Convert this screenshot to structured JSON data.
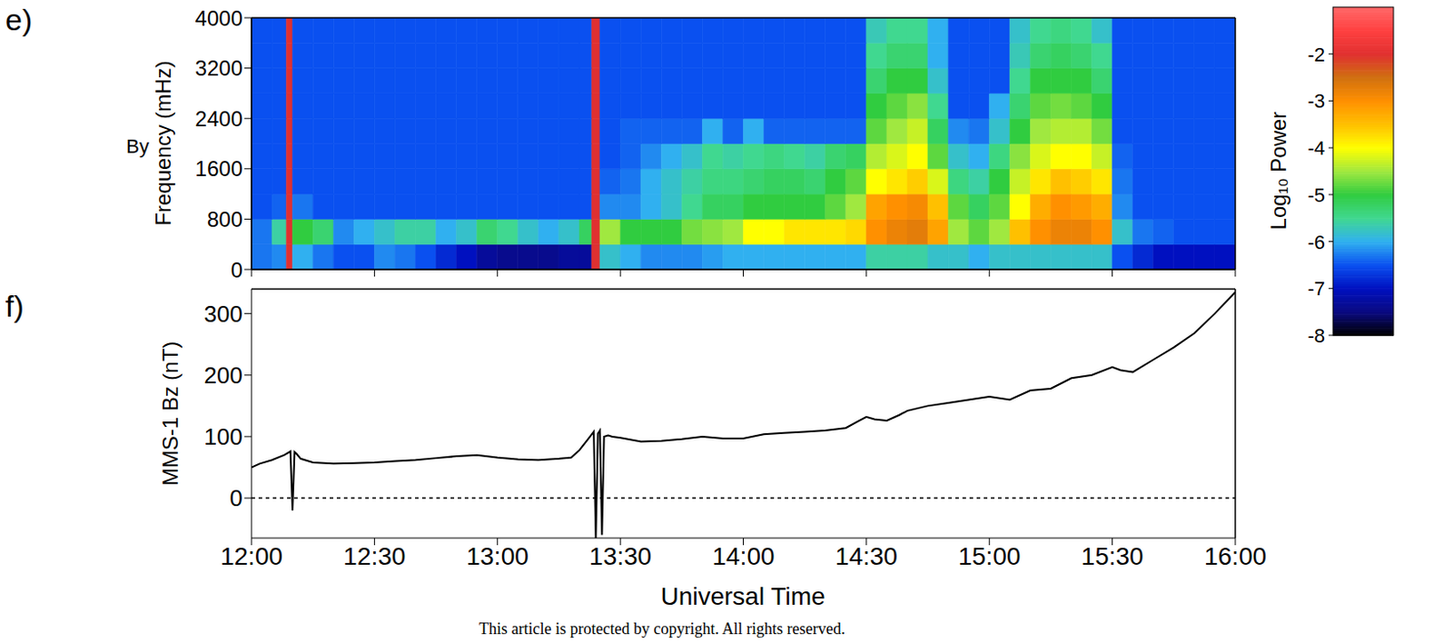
{
  "chart_data": [
    {
      "type": "heatmap",
      "panel": "e)",
      "ylabel": "Frequency  (mHz)",
      "annotation": "By",
      "x_edges": [
        0,
        5,
        8.5,
        10,
        15,
        20,
        25,
        30,
        35,
        40,
        45,
        50,
        55,
        60,
        65,
        70,
        75,
        80,
        83,
        85,
        90,
        95,
        100,
        105,
        110,
        115,
        120,
        125,
        130,
        135,
        140,
        145,
        150,
        155,
        160,
        165,
        170,
        175,
        180,
        185,
        190,
        195,
        200,
        205,
        210,
        215,
        220,
        225,
        230,
        235,
        240
      ],
      "y_edges": [
        0,
        400,
        800,
        1200,
        1600,
        2000,
        2400,
        2800,
        3200,
        3600,
        4000
      ],
      "cells": [
        [
          -6.3,
          -6.2,
          -2,
          -6,
          -6.3,
          -6.5,
          -6.5,
          -6.2,
          -6.3,
          -6.5,
          -6.8,
          -7,
          -7.3,
          -7.4,
          -7.4,
          -7.4,
          -7.3,
          -7.3,
          -2,
          -5.8,
          -6,
          -6.2,
          -6.2,
          -6.2,
          -6.1,
          -6,
          -6,
          -6,
          -6,
          -6,
          -6,
          -6,
          -5.6,
          -5.6,
          -5.6,
          -5.8,
          -5.8,
          -6,
          -5.8,
          -5.8,
          -5.8,
          -5.8,
          -5.8,
          -5.8,
          -6.5,
          -6.8,
          -7,
          -7,
          -7,
          -7
        ],
        [
          -6.3,
          -5.6,
          -2,
          -5,
          -5.3,
          -6.2,
          -6,
          -5.8,
          -5.6,
          -5.6,
          -6,
          -5.8,
          -5.3,
          -5.5,
          -5.8,
          -6,
          -5.8,
          -5.2,
          -2,
          -4.5,
          -5,
          -5,
          -5,
          -4.7,
          -4.6,
          -4.5,
          -4,
          -4,
          -3.8,
          -3.8,
          -3.8,
          -3.7,
          -3,
          -2.8,
          -2.7,
          -3.2,
          -4.5,
          -4.8,
          -4.5,
          -3.5,
          -3,
          -2.8,
          -2.8,
          -3,
          -5.8,
          -6.3,
          -6.4,
          -6.5,
          -6.5,
          -6.5
        ],
        [
          -6.5,
          -6.4,
          -2,
          -6.3,
          -6.5,
          -6.5,
          -6.5,
          -6.5,
          -6.5,
          -6.5,
          -6.5,
          -6.5,
          -6.5,
          -6.5,
          -6.5,
          -6.5,
          -6.5,
          -6.5,
          -2,
          -6.2,
          -6.2,
          -6,
          -5.8,
          -5.5,
          -5.2,
          -5.2,
          -5,
          -5,
          -5,
          -5,
          -4.8,
          -4.5,
          -3.2,
          -3,
          -2.9,
          -3.5,
          -4.8,
          -5.2,
          -4.8,
          -4,
          -3.3,
          -3,
          -3.1,
          -3.3,
          -6.2,
          -6.5,
          -6.5,
          -6.5,
          -6.5,
          -6.5
        ],
        [
          -6.5,
          -6.5,
          -2,
          -6.5,
          -6.5,
          -6.5,
          -6.5,
          -6.5,
          -6.5,
          -6.5,
          -6.5,
          -6.5,
          -6.5,
          -6.5,
          -6.5,
          -6.5,
          -6.5,
          -6.5,
          -2,
          -6.4,
          -6.3,
          -6,
          -5.8,
          -5.6,
          -5.4,
          -5.4,
          -5.3,
          -5.2,
          -5.2,
          -5.3,
          -5,
          -4.8,
          -4,
          -3.8,
          -3.6,
          -4.2,
          -5.4,
          -5.6,
          -5,
          -4.3,
          -3.8,
          -3.5,
          -3.6,
          -3.8,
          -6.3,
          -6.5,
          -6.5,
          -6.5,
          -6.5,
          -6.5
        ],
        [
          -6.5,
          -6.5,
          -2,
          -6.5,
          -6.5,
          -6.5,
          -6.5,
          -6.5,
          -6.5,
          -6.5,
          -6.5,
          -6.5,
          -6.5,
          -6.5,
          -6.5,
          -6.5,
          -6.5,
          -6.5,
          -2,
          -6.5,
          -6.4,
          -6.2,
          -6,
          -5.8,
          -5.5,
          -5.6,
          -5.5,
          -5.4,
          -5.5,
          -5.6,
          -5.3,
          -5.2,
          -4.4,
          -4.2,
          -4,
          -4.8,
          -5.8,
          -6,
          -5.4,
          -4.6,
          -4.2,
          -4,
          -4,
          -4.3,
          -6.4,
          -6.5,
          -6.5,
          -6.5,
          -6.5,
          -6.5
        ],
        [
          -6.5,
          -6.5,
          -2,
          -6.5,
          -6.5,
          -6.5,
          -6.5,
          -6.5,
          -6.5,
          -6.5,
          -6.5,
          -6.5,
          -6.5,
          -6.5,
          -6.5,
          -6.5,
          -6.5,
          -6.5,
          -2,
          -6.5,
          -6.4,
          -6.4,
          -6.4,
          -6.4,
          -6,
          -6.4,
          -6,
          -6.4,
          -6.4,
          -6.4,
          -6.4,
          -6.4,
          -4.8,
          -4.5,
          -4.3,
          -5.2,
          -6.2,
          -6.3,
          -5.8,
          -5,
          -4.5,
          -4.4,
          -4.4,
          -4.7,
          -6.5,
          -6.5,
          -6.5,
          -6.5,
          -6.5,
          -6.5
        ],
        [
          -6.5,
          -6.5,
          -2,
          -6.5,
          -6.5,
          -6.5,
          -6.5,
          -6.5,
          -6.5,
          -6.5,
          -6.5,
          -6.5,
          -6.5,
          -6.5,
          -6.5,
          -6.5,
          -6.5,
          -6.5,
          -2,
          -6.5,
          -6.5,
          -6.5,
          -6.5,
          -6.5,
          -6.5,
          -6.5,
          -6.5,
          -6.5,
          -6.5,
          -6.5,
          -6.5,
          -6.5,
          -5,
          -4.8,
          -4.6,
          -5.5,
          -6.5,
          -6.5,
          -6,
          -5.3,
          -4.8,
          -4.7,
          -4.8,
          -5,
          -6.5,
          -6.5,
          -6.5,
          -6.5,
          -6.5,
          -6.5
        ],
        [
          -6.5,
          -6.5,
          -2,
          -6.5,
          -6.5,
          -6.5,
          -6.5,
          -6.5,
          -6.5,
          -6.5,
          -6.5,
          -6.5,
          -6.5,
          -6.5,
          -6.5,
          -6.5,
          -6.5,
          -6.5,
          -2,
          -6.5,
          -6.5,
          -6.5,
          -6.5,
          -6.5,
          -6.5,
          -6.5,
          -6.5,
          -6.5,
          -6.5,
          -6.5,
          -6.5,
          -6.5,
          -5.3,
          -5,
          -5,
          -5.8,
          -6.5,
          -6.5,
          -6.5,
          -5.5,
          -5,
          -5,
          -5,
          -5.3,
          -6.5,
          -6.5,
          -6.5,
          -6.5,
          -6.5,
          -6.5
        ],
        [
          -6.5,
          -6.5,
          -2,
          -6.5,
          -6.5,
          -6.5,
          -6.5,
          -6.5,
          -6.5,
          -6.5,
          -6.5,
          -6.5,
          -6.5,
          -6.5,
          -6.5,
          -6.5,
          -6.5,
          -6.5,
          -2,
          -6.5,
          -6.5,
          -6.5,
          -6.5,
          -6.5,
          -6.5,
          -6.5,
          -6.5,
          -6.5,
          -6.5,
          -6.5,
          -6.5,
          -6.5,
          -5.5,
          -5.3,
          -5.3,
          -6,
          -6.5,
          -6.5,
          -6.5,
          -5.7,
          -5.3,
          -5.2,
          -5.3,
          -5.5,
          -6.5,
          -6.5,
          -6.5,
          -6.5,
          -6.5,
          -6.5
        ],
        [
          -6.5,
          -6.5,
          -2,
          -6.5,
          -6.5,
          -6.5,
          -6.5,
          -6.5,
          -6.5,
          -6.5,
          -6.5,
          -6.5,
          -6.5,
          -6.5,
          -6.5,
          -6.5,
          -6.5,
          -6.5,
          -2,
          -6.5,
          -6.5,
          -6.5,
          -6.5,
          -6.5,
          -6.5,
          -6.5,
          -6.5,
          -6.5,
          -6.5,
          -6.5,
          -6.5,
          -6.5,
          -5.7,
          -5.5,
          -5.5,
          -6,
          -6.5,
          -6.5,
          -6.5,
          -5.8,
          -5.5,
          -5.4,
          -5.5,
          -5.8,
          -6.5,
          -6.5,
          -6.5,
          -6.5,
          -6.5,
          -6.5
        ]
      ],
      "xlim": [
        0,
        240
      ],
      "xticks": [
        0,
        30,
        60,
        90,
        120,
        150,
        180,
        210,
        240
      ],
      "ylim": [
        0,
        4000
      ],
      "yticks": [
        0,
        800,
        1600,
        2400,
        3200,
        4000
      ],
      "tick_labels": "y",
      "colorbar": {
        "label": "Log₁₀ Power",
        "range": [
          -8,
          -1
        ],
        "ticks": [
          -8,
          -7,
          -6,
          -5,
          -4,
          -3,
          -2
        ]
      }
    },
    {
      "type": "line",
      "panel": "f)",
      "ylabel": "MMS-1  Bz  (nT)",
      "xlabel": "Universal Time",
      "x": [
        0,
        2,
        5,
        8,
        9.5,
        10,
        10.5,
        11,
        12,
        15,
        20,
        25,
        30,
        35,
        40,
        45,
        50,
        55,
        60,
        65,
        70,
        75,
        78,
        80,
        82,
        83.5,
        84,
        84.5,
        85,
        85.5,
        86,
        87,
        88,
        90,
        95,
        100,
        105,
        110,
        115,
        120,
        125,
        130,
        135,
        140,
        145,
        148,
        150,
        152,
        155,
        158,
        160,
        165,
        170,
        175,
        180,
        185,
        190,
        195,
        200,
        205,
        210,
        212,
        215,
        220,
        225,
        230,
        235,
        240
      ],
      "values": [
        50,
        56,
        62,
        70,
        76,
        -20,
        75,
        72,
        64,
        58,
        56,
        57,
        58,
        60,
        62,
        65,
        68,
        70,
        66,
        63,
        62,
        64,
        66,
        78,
        95,
        108,
        -65,
        105,
        110,
        -60,
        100,
        102,
        100,
        98,
        92,
        93,
        96,
        100,
        97,
        97,
        104,
        106,
        108,
        110,
        114,
        125,
        132,
        128,
        126,
        135,
        142,
        150,
        155,
        160,
        165,
        160,
        175,
        178,
        195,
        200,
        213,
        208,
        205,
        225,
        245,
        268,
        300,
        335
      ],
      "color": "#000000",
      "xlim": [
        0,
        240
      ],
      "xticks": [
        {
          "value": 0,
          "label": "12:00"
        },
        {
          "value": 30,
          "label": "12:30"
        },
        {
          "value": 60,
          "label": "13:00"
        },
        {
          "value": 90,
          "label": "13:30"
        },
        {
          "value": 120,
          "label": "14:00"
        },
        {
          "value": 150,
          "label": "14:30"
        },
        {
          "value": 180,
          "label": "15:00"
        },
        {
          "value": 210,
          "label": "15:30"
        },
        {
          "value": 240,
          "label": "16:00"
        }
      ],
      "ylim": [
        -65,
        340
      ],
      "yticks": [
        0,
        100,
        200,
        300
      ],
      "baseline": 0,
      "footer": "This article is protected by copyright. All rights reserved."
    }
  ]
}
